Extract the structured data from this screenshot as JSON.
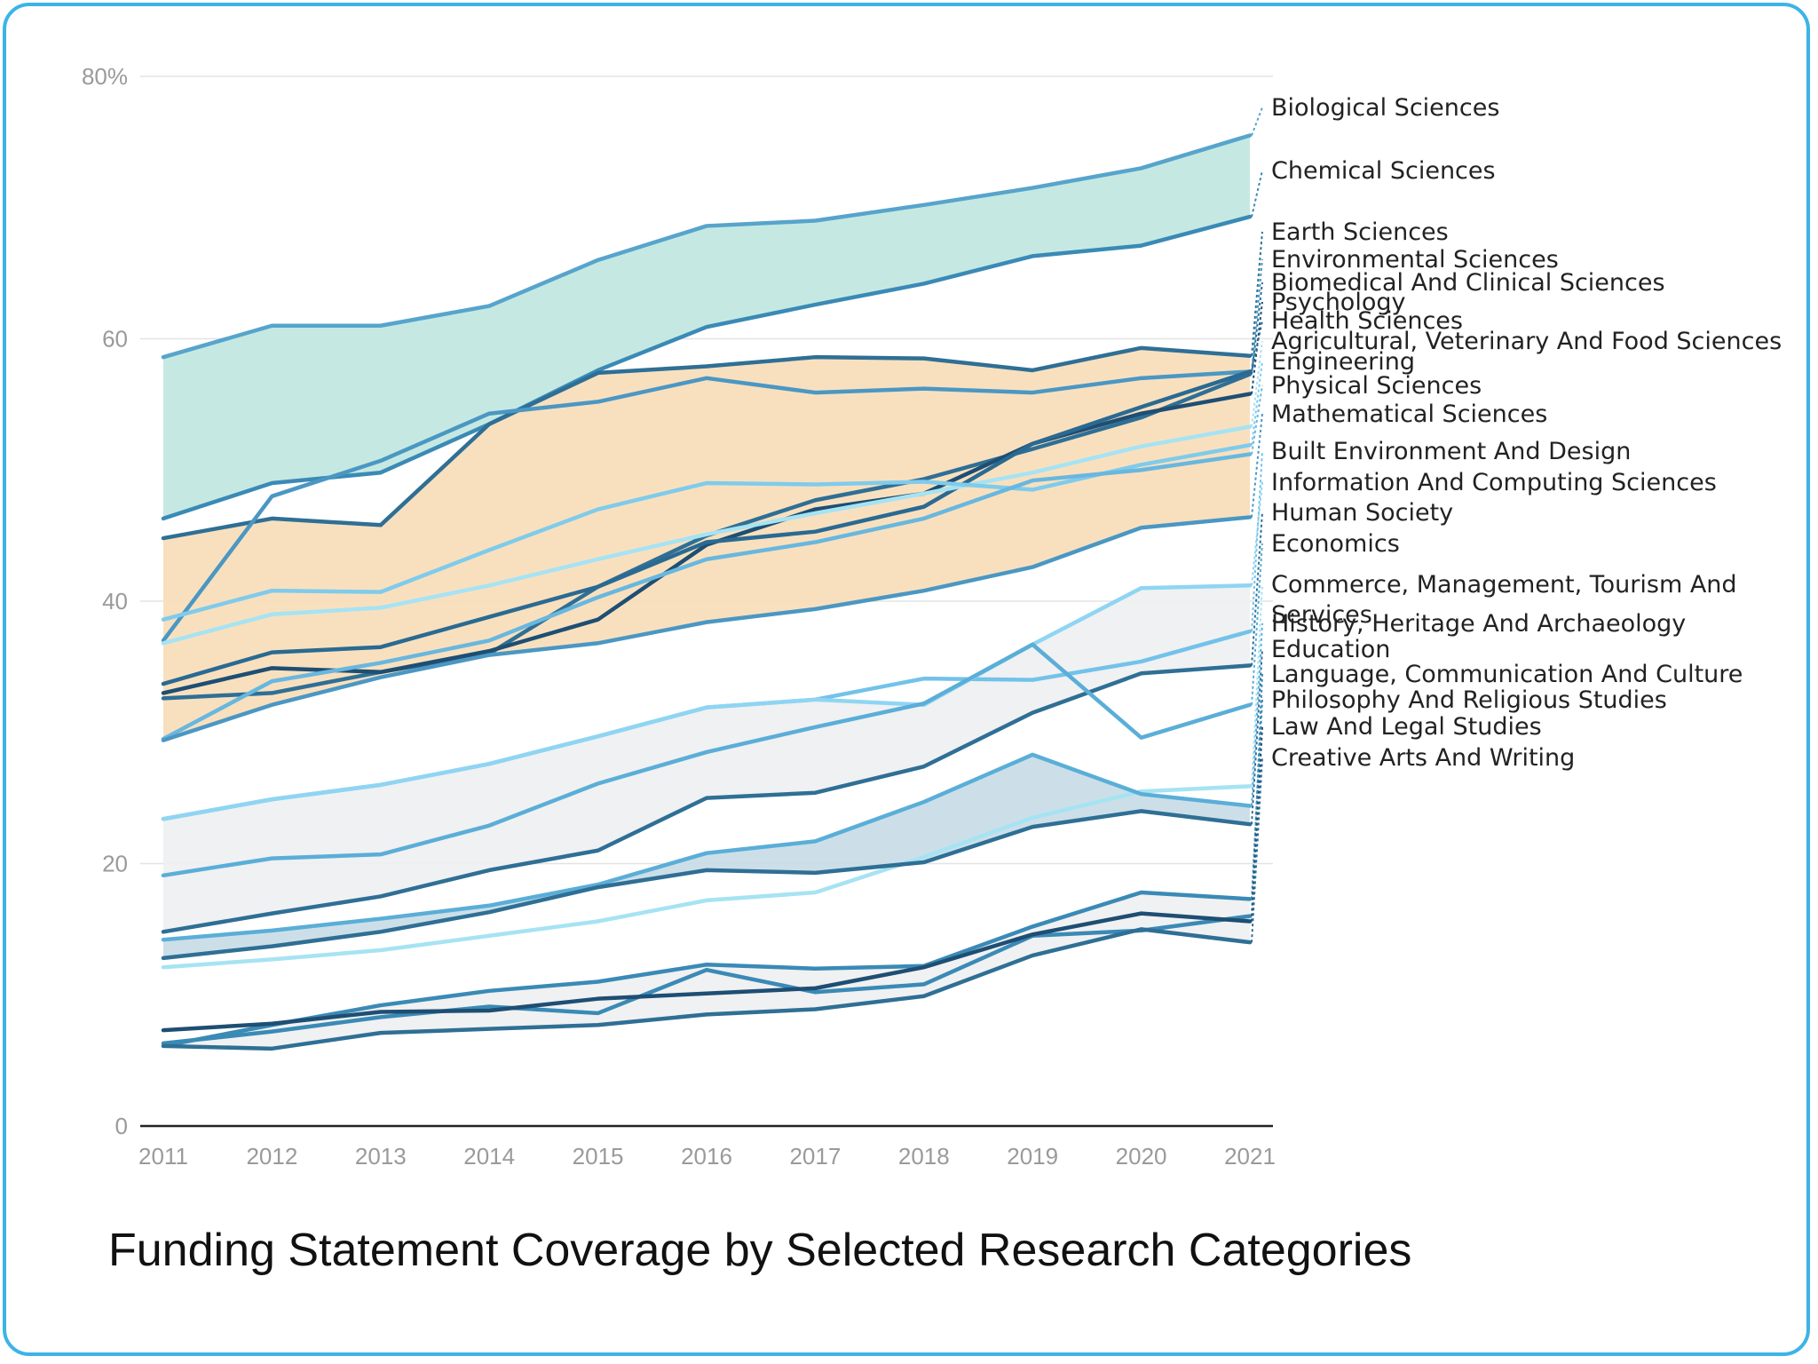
{
  "chart_data": {
    "type": "line",
    "title": "Funding Statement Coverage by Selected Research Categories",
    "xlabel": "",
    "ylabel": "",
    "ylim": [
      0,
      80
    ],
    "yticks": [
      0,
      20,
      40,
      60,
      80
    ],
    "ytick_labels": [
      "0",
      "20",
      "40",
      "60",
      "80%"
    ],
    "grid": true,
    "legend": "labels at right end of lines",
    "x": [
      "2011",
      "2012",
      "2013",
      "2014",
      "2015",
      "2016",
      "2017",
      "2018",
      "2019",
      "2020",
      "2021"
    ],
    "series": [
      {
        "name": "Biological Sciences",
        "color": "#57a4cc",
        "values": [
          58.6,
          61,
          61,
          62.5,
          66,
          68.6,
          69,
          70.2,
          71.5,
          73,
          75.5
        ]
      },
      {
        "name": "Chemical Sciences",
        "color": "#3a8ab6",
        "values": [
          46.3,
          49,
          49.8,
          53.5,
          57.6,
          60.9,
          62.6,
          64.2,
          66.3,
          67.1,
          69.3
        ]
      },
      {
        "name": "Earth Sciences",
        "color": "#2f6f95",
        "values": [
          44.8,
          46.3,
          45.8,
          53.5,
          57.4,
          57.9,
          58.6,
          58.5,
          57.6,
          59.3,
          58.7
        ]
      },
      {
        "name": "Environmental Sciences",
        "color": "#4b97c3",
        "values": [
          37,
          48,
          50.7,
          54.3,
          55.2,
          57,
          55.9,
          56.2,
          55.9,
          57,
          57.5
        ]
      },
      {
        "name": "Biomedical And Clinical Sciences",
        "color": "#2f6f95",
        "values": [
          32.6,
          33,
          34.6,
          36,
          41.1,
          45,
          47.7,
          49.3,
          51.6,
          54,
          57.3
        ]
      },
      {
        "name": "Psychology",
        "color": "#1e4e73",
        "values": [
          33,
          34.9,
          34.6,
          36.2,
          38.6,
          44.3,
          47,
          48.2,
          52,
          54.3,
          55.8
        ]
      },
      {
        "name": "Health Sciences",
        "color": "#2a6a92",
        "values": [
          33.7,
          36.1,
          36.5,
          38.8,
          41.1,
          44.5,
          45.3,
          47.2,
          52,
          54.8,
          57.5
        ]
      },
      {
        "name": "Agricultural, Veterinary And Food Sciences",
        "color": "#a6e3f3",
        "values": [
          36.8,
          39,
          39.5,
          41.2,
          43.2,
          45.1,
          46.7,
          48.2,
          49.8,
          51.8,
          53.3
        ]
      },
      {
        "name": "Engineering",
        "color": "#7fcbeb",
        "values": [
          38.6,
          40.8,
          40.7,
          43.9,
          47,
          49,
          48.9,
          49.1,
          48.5,
          50.4,
          51.9
        ]
      },
      {
        "name": "Physical Sciences",
        "color": "#68b7df",
        "values": [
          29.5,
          33.9,
          35.3,
          37,
          40.3,
          43.2,
          44.5,
          46.3,
          49.2,
          50,
          51.2
        ]
      },
      {
        "name": "Mathematical Sciences",
        "color": "#4b97c3",
        "values": [
          29.4,
          32.1,
          34.2,
          35.9,
          36.8,
          38.4,
          39.4,
          40.8,
          42.6,
          45.6,
          46.4
        ]
      },
      {
        "name": "Built Environment And Design",
        "color": "#72c2ea",
        "values": [
          23.4,
          24.9,
          26,
          27.6,
          29.7,
          31.9,
          32.5,
          34.1,
          34,
          35.4,
          37.7
        ]
      },
      {
        "name": "Information And Computing Sciences",
        "color": "#8fd5f3",
        "values": [
          23.4,
          24.9,
          26,
          27.6,
          29.7,
          31.9,
          32.5,
          32.1,
          36.7,
          41,
          41.2
        ]
      },
      {
        "name": "Human Society",
        "color": "#2f6f95",
        "values": [
          14.8,
          16.2,
          17.5,
          19.5,
          21,
          25,
          25.4,
          27.4,
          31.5,
          34.5,
          35.1
        ]
      },
      {
        "name": "Economics",
        "color": "#5aaed8",
        "values": [
          19.1,
          20.4,
          20.7,
          22.9,
          26.1,
          28.5,
          30.4,
          32.2,
          36.7,
          29.6,
          32.1
        ]
      },
      {
        "name": "Commerce, Management, Tourism And Services",
        "color": "#a6e3f3",
        "values": [
          12.1,
          12.7,
          13.4,
          14.5,
          15.6,
          17.2,
          17.8,
          20.5,
          23.5,
          25.5,
          25.9
        ]
      },
      {
        "name": "History, Heritage And Archaeology",
        "color": "#5aaed8",
        "values": [
          14.2,
          14.9,
          15.8,
          16.8,
          18.4,
          20.8,
          21.7,
          24.7,
          28.3,
          25.3,
          24.4
        ]
      },
      {
        "name": "Education",
        "color": "#2f6f95",
        "values": [
          12.8,
          13.7,
          14.8,
          16.3,
          18.2,
          19.5,
          19.3,
          20.1,
          22.8,
          24,
          23
        ]
      },
      {
        "name": "Language, Communication And Culture",
        "color": "#3a8ab6",
        "values": [
          6.3,
          7.2,
          8.3,
          9.1,
          8.6,
          11.9,
          10.2,
          10.8,
          14.5,
          14.9,
          16
        ]
      },
      {
        "name": "Philosophy And Religious Studies",
        "color": "#3a8ab6",
        "values": [
          6.1,
          7.7,
          9.2,
          10.3,
          11,
          12.3,
          12,
          12.2,
          15.2,
          17.8,
          17.3
        ]
      },
      {
        "name": "Law And Legal Studies",
        "color": "#1e4e73",
        "values": [
          7.3,
          7.8,
          8.7,
          8.8,
          9.7,
          10.1,
          10.5,
          12.1,
          14.6,
          16.2,
          15.6
        ]
      },
      {
        "name": "Creative Arts And Writing",
        "color": "#2f6f95",
        "values": [
          6.1,
          5.9,
          7.1,
          7.4,
          7.7,
          8.5,
          8.9,
          9.9,
          13,
          15,
          14
        ]
      }
    ],
    "bands": [
      {
        "fill": "#bfe7df",
        "upper": "Biological Sciences",
        "lower": "Chemical Sciences"
      },
      {
        "fill": "#f7ddb8",
        "upper": "Earth Sciences",
        "lower": "Mathematical Sciences"
      },
      {
        "fill": "#eeeff1",
        "upper": "Information And Computing Sciences",
        "lower": "Human Society"
      },
      {
        "fill": "#c7dbe6",
        "upper": "History, Heritage And Archaeology",
        "lower": "Education"
      },
      {
        "fill": "#eeeff1",
        "upper": "Philosophy And Religious Studies",
        "lower": "Creative Arts And Writing"
      }
    ],
    "label_y": [
      121,
      192,
      261,
      292,
      318,
      340,
      361,
      384,
      407,
      434,
      466,
      508,
      543,
      577,
      612,
      658,
      702,
      731,
      759,
      788,
      818,
      853
    ]
  }
}
